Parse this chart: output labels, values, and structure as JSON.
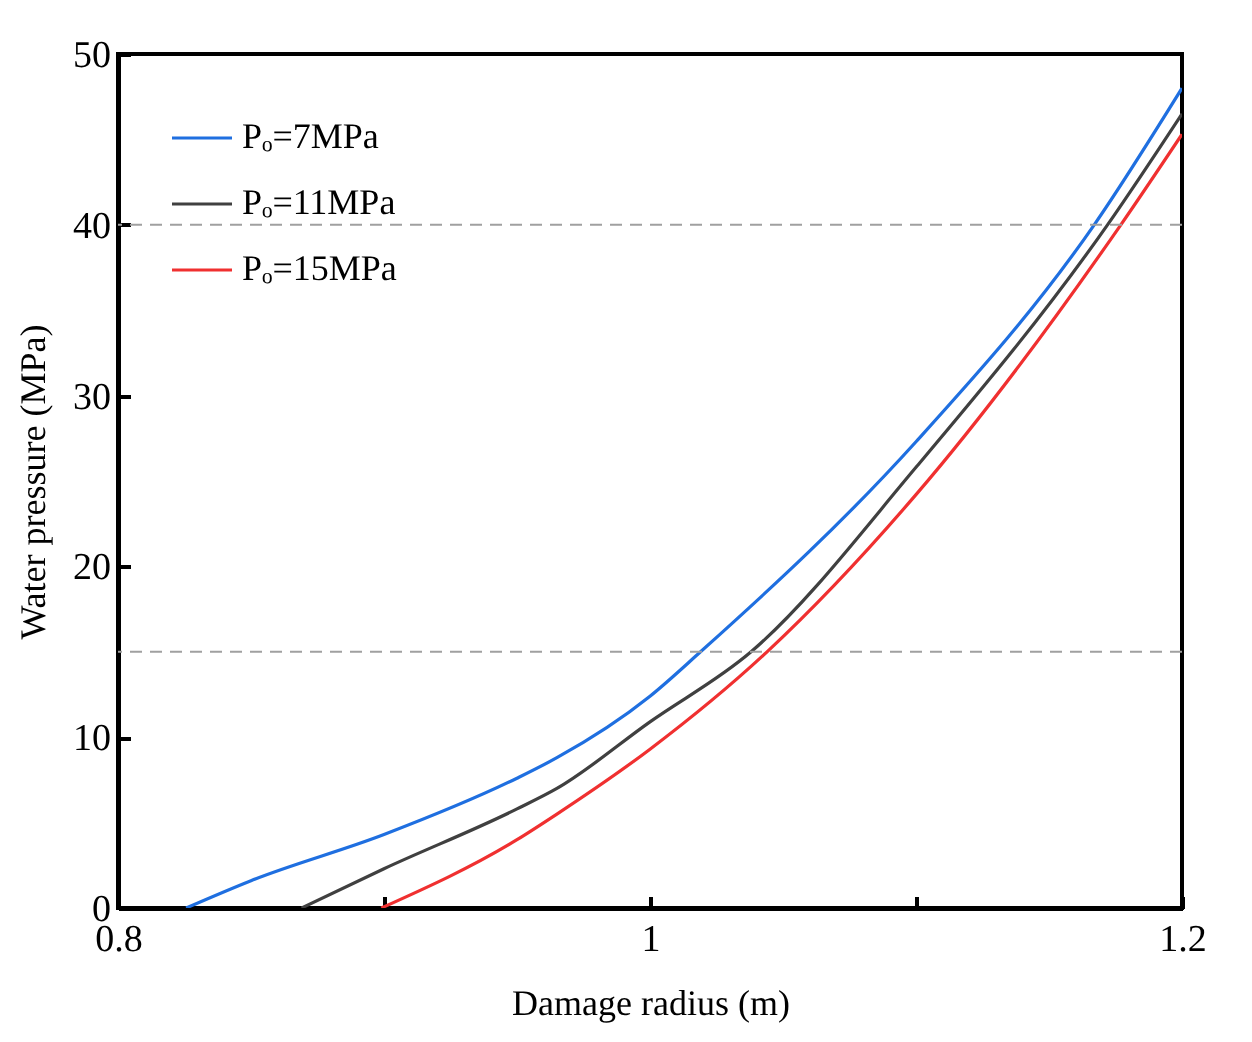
{
  "chart_data": {
    "type": "line",
    "xlabel": "Damage radius (m)",
    "ylabel": "Water pressure (MPa)",
    "xlim": [
      0.8,
      1.2
    ],
    "xticks": [
      0.8,
      {
        "value": 0.9,
        "label": null
      },
      1,
      {
        "value": 1.1,
        "label": null
      },
      1.2
    ],
    "ylim": [
      0,
      50
    ],
    "yticks": [
      0,
      10,
      20,
      30,
      40,
      50
    ],
    "grid": false,
    "legend": "top left",
    "line_style": "solid",
    "marker": "none",
    "series": [
      {
        "name": "Pₒ=7MPa",
        "color": "#1f6fe0",
        "x": [
          0.8256,
          0.85,
          0.9,
          0.95,
          0.965,
          1.0,
          1.019,
          1.1,
          1.167,
          1.2
        ],
        "values": [
          0,
          1.6,
          4.3,
          7.6,
          8.8,
          12.4,
          15,
          27.3,
          40,
          48
        ]
      },
      {
        "name": "Pₒ=11MPa",
        "color": "#404040",
        "x": [
          0.869,
          0.9,
          0.95,
          0.965,
          1.0,
          1.038,
          1.1,
          1.172,
          1.2
        ],
        "values": [
          0,
          2.3,
          5.8,
          7.0,
          10.9,
          15,
          25.8,
          40,
          46.5
        ]
      },
      {
        "name": "Pₒ=15MPa",
        "color": "#f03030",
        "x": [
          0.899,
          0.95,
          0.965,
          1.0,
          1.044,
          1.1,
          1.177,
          1.2
        ],
        "values": [
          0,
          4.0,
          5.5,
          9.3,
          15,
          24.2,
          40,
          45.3
        ]
      }
    ],
    "ref_lines": [
      {
        "axis": "y",
        "value": 15,
        "color": "#a0a0a0",
        "line_style": "dashed"
      },
      {
        "axis": "y",
        "value": 40,
        "color": "#a0a0a0",
        "line_style": "dashed"
      }
    ]
  }
}
